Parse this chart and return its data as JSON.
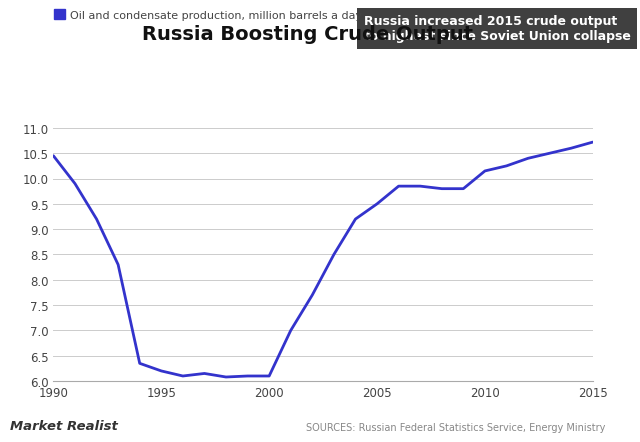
{
  "title": "Russia Boosting Crude Output",
  "legend_label": "Oil and condensate production, million barrels a day",
  "line_color": "#3333cc",
  "line_width": 2.0,
  "ylim": [
    6.0,
    11.25
  ],
  "xlim": [
    1990,
    2015
  ],
  "yticks": [
    6.0,
    6.5,
    7.0,
    7.5,
    8.0,
    8.5,
    9.0,
    9.5,
    10.0,
    10.5,
    11.0
  ],
  "xticks": [
    1990,
    1995,
    2000,
    2005,
    2010,
    2015
  ],
  "annotation_text": "Russia increased 2015 crude output\nto highest since Soviet Union collapse",
  "annotation_box_color": "#404040",
  "annotation_text_color": "#ffffff",
  "source_text": "SOURCES: Russian Federal Statistics Service, Energy Ministry",
  "brand_text": "Market Realist",
  "background_color": "#ffffff",
  "years": [
    1990,
    1991,
    1992,
    1993,
    1994,
    1995,
    1996,
    1997,
    1998,
    1999,
    2000,
    2001,
    2002,
    2003,
    2004,
    2005,
    2006,
    2007,
    2008,
    2009,
    2010,
    2011,
    2012,
    2013,
    2014,
    2015
  ],
  "values": [
    10.45,
    9.9,
    9.2,
    8.3,
    6.35,
    6.2,
    6.1,
    6.15,
    6.08,
    6.1,
    6.1,
    7.0,
    7.7,
    8.5,
    9.2,
    9.5,
    9.85,
    9.85,
    9.8,
    9.8,
    10.15,
    10.25,
    10.4,
    10.5,
    10.6,
    10.72
  ]
}
